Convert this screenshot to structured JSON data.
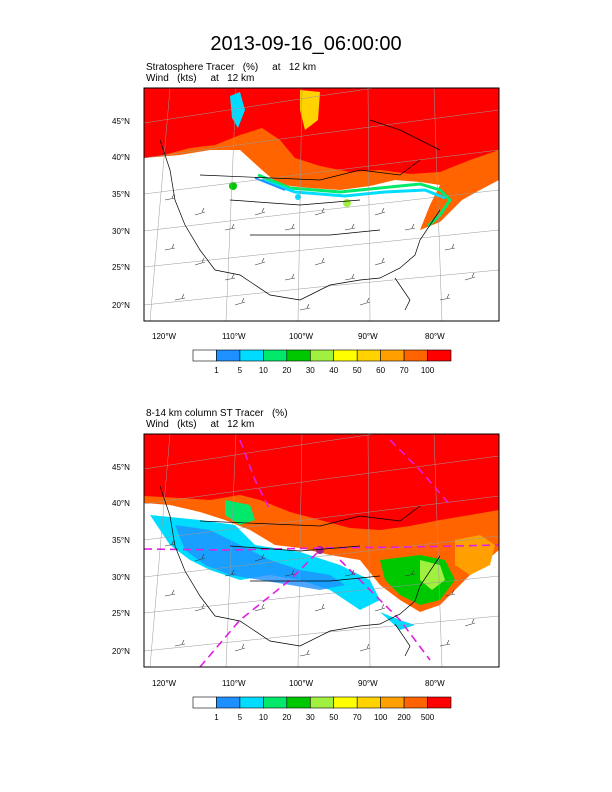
{
  "title": "2013-09-16_06:00:00",
  "panels": [
    {
      "title_line1": "Stratosphere Tracer   (%)     at   12 km",
      "title_line2": "Wind   (kts)     at   12 km",
      "lat_labels": [
        "45°N",
        "40°N",
        "35°N",
        "30°N",
        "25°N",
        "20°N"
      ],
      "lon_labels": [
        "120°W",
        "110°W",
        "100°W",
        "90°W",
        "80°W"
      ],
      "colorbar": {
        "labels": [
          "1",
          "5",
          "10",
          "20",
          "30",
          "40",
          "50",
          "60",
          "70",
          "100"
        ],
        "colors": [
          "#ffffff",
          "#1e90ff",
          "#00dcff",
          "#00e96b",
          "#00c800",
          "#a0f040",
          "#ffff00",
          "#ffd200",
          "#ffa000",
          "#ff6400",
          "#ff0000"
        ]
      }
    },
    {
      "title_line1": "8-14 km column ST Tracer   (%)",
      "title_line2": "Wind   (kts)     at   12 km",
      "lat_labels": [
        "45°N",
        "40°N",
        "35°N",
        "30°N",
        "25°N",
        "20°N"
      ],
      "lon_labels": [
        "120°W",
        "110°W",
        "100°W",
        "90°W",
        "80°W"
      ],
      "colorbar": {
        "labels": [
          "1",
          "5",
          "10",
          "20",
          "30",
          "50",
          "70",
          "100",
          "200",
          "500"
        ],
        "colors": [
          "#ffffff",
          "#1e90ff",
          "#00dcff",
          "#00e96b",
          "#00c800",
          "#a0f040",
          "#ffff00",
          "#ffd200",
          "#ffa000",
          "#ff6400",
          "#ff0000"
        ]
      }
    }
  ]
}
